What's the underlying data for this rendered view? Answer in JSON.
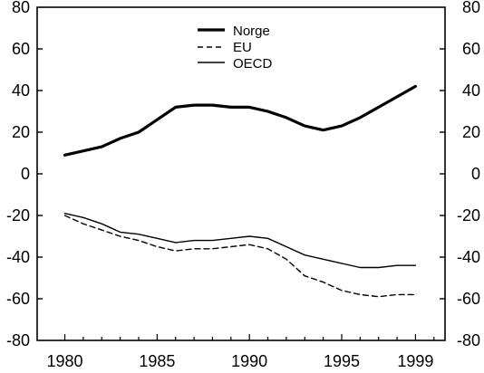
{
  "chart_data": {
    "type": "line",
    "title": "",
    "xlabel": "",
    "ylabel": "",
    "xlim": [
      1978.5,
      2000.6
    ],
    "ylim": [
      -80,
      80
    ],
    "x_ticks": [
      1980,
      1985,
      1990,
      1995,
      1999
    ],
    "x_tick_labels": [
      "1980",
      "1985",
      "1990",
      "1995",
      "1999"
    ],
    "y_ticks": [
      80,
      60,
      40,
      20,
      0,
      -20,
      -40,
      -60,
      -80
    ],
    "y_tick_labels": [
      "80",
      "60",
      "40",
      "20",
      "0",
      "-20",
      "-40",
      "-60",
      "-80"
    ],
    "grid": false,
    "legend_position": "top-center",
    "series": [
      {
        "name": "Norge",
        "style": "thick-solid",
        "color": "#000000",
        "x": [
          1980,
          1981,
          1982,
          1983,
          1984,
          1985,
          1986,
          1987,
          1988,
          1989,
          1990,
          1991,
          1992,
          1993,
          1994,
          1995,
          1996,
          1997,
          1998,
          1999
        ],
        "values": [
          9,
          11,
          13,
          17,
          20,
          26,
          32,
          33,
          33,
          32,
          32,
          30,
          27,
          23,
          21,
          23,
          27,
          32,
          37,
          42
        ]
      },
      {
        "name": "EU",
        "style": "dashed",
        "color": "#000000",
        "x": [
          1980,
          1981,
          1982,
          1983,
          1984,
          1985,
          1986,
          1987,
          1988,
          1989,
          1990,
          1991,
          1992,
          1993,
          1994,
          1995,
          1996,
          1997,
          1998,
          1999
        ],
        "values": [
          -20,
          -24,
          -27,
          -30,
          -32,
          -35,
          -37,
          -36,
          -36,
          -35,
          -34,
          -36,
          -41,
          -49,
          -52,
          -56,
          -58,
          -59,
          -58,
          -58
        ]
      },
      {
        "name": "OECD",
        "style": "thin-solid",
        "color": "#000000",
        "x": [
          1980,
          1981,
          1982,
          1983,
          1984,
          1985,
          1986,
          1987,
          1988,
          1989,
          1990,
          1991,
          1992,
          1993,
          1994,
          1995,
          1996,
          1997,
          1998,
          1999
        ],
        "values": [
          -19,
          -21,
          -24,
          -28,
          -29,
          -31,
          -33,
          -32,
          -32,
          -31,
          -30,
          -31,
          -35,
          -39,
          -41,
          -43,
          -45,
          -45,
          -44,
          -44
        ]
      }
    ]
  }
}
